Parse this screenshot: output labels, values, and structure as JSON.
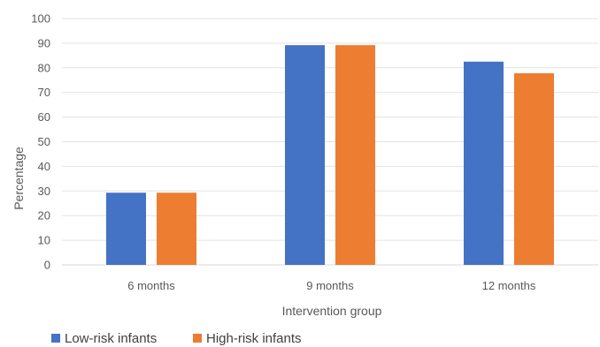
{
  "chart_data": {
    "type": "bar",
    "categories": [
      "6 months",
      "9 months",
      "12 months"
    ],
    "series": [
      {
        "name": "Low-risk infants",
        "color": "#4472C4",
        "values": [
          29.3,
          89.2,
          82.5
        ]
      },
      {
        "name": "High-risk infants",
        "color": "#ED7D31",
        "values": [
          29.3,
          89.2,
          77.8
        ]
      }
    ],
    "xlabel": "Intervention group",
    "ylabel": "Percentage",
    "ylim": [
      0,
      100
    ],
    "yticks": [
      0,
      10,
      20,
      30,
      40,
      50,
      60,
      70,
      80,
      90,
      100
    ],
    "grid": true,
    "legend_position": "bottom-left"
  }
}
